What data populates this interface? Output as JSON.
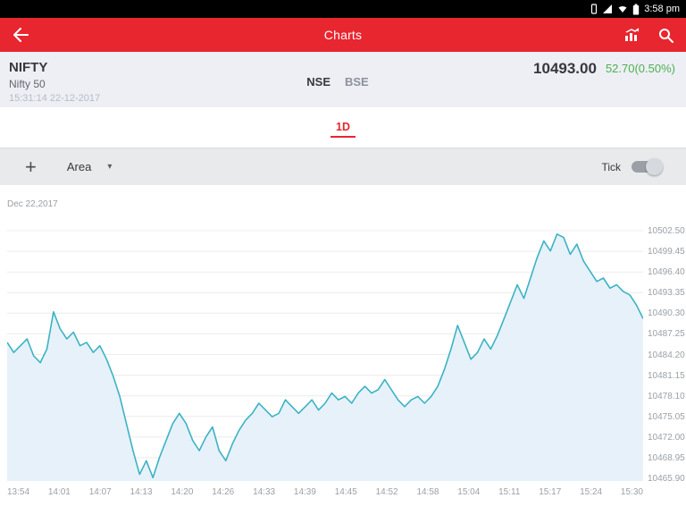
{
  "colors": {
    "accent": "#e8262f",
    "positive": "#4caf50"
  },
  "status_bar": {
    "time": "3:58 pm"
  },
  "app_bar": {
    "title": "Charts"
  },
  "quote": {
    "symbol": "NIFTY",
    "name": "Nifty 50",
    "timestamp": "15:31:14  22-12-2017",
    "exchange_primary": "NSE",
    "exchange_secondary": "BSE",
    "price": "10493.00",
    "change": "52.70(0.50%)"
  },
  "range_tabs": {
    "active_label": "1D"
  },
  "toolbar": {
    "plus_glyph": "+",
    "chart_type": "Area",
    "caret_glyph": "▾",
    "tick_label": "Tick",
    "tick_on": false
  },
  "chart": {
    "date_label": "Dec 22,2017"
  },
  "chart_data": {
    "type": "area",
    "title": "NIFTY Nifty 50 intraday 1D",
    "xlabel": "",
    "ylabel": "",
    "grid": true,
    "legend": false,
    "line_color": "#3bb3c3",
    "fill_color": "#e7f1fa",
    "grid_color": "#ececec",
    "ylim": [
      10465.9,
      10502.5
    ],
    "y_ticks": [
      "10502.50",
      "10499.45",
      "10496.40",
      "10493.35",
      "10490.30",
      "10487.25",
      "10484.20",
      "10481.15",
      "10478.10",
      "10475.05",
      "10472.00",
      "10468.95",
      "10465.90"
    ],
    "x_ticks": [
      "13:54",
      "14:01",
      "14:07",
      "14:13",
      "14:20",
      "14:26",
      "14:33",
      "14:39",
      "14:45",
      "14:52",
      "14:58",
      "15:04",
      "15:11",
      "15:17",
      "15:24",
      "15:30"
    ],
    "values": [
      10486.0,
      10484.5,
      10485.5,
      10486.5,
      10484.0,
      10483.0,
      10485.0,
      10490.5,
      10488.0,
      10486.5,
      10487.5,
      10485.5,
      10486.0,
      10484.5,
      10485.5,
      10483.5,
      10481.0,
      10478.0,
      10474.0,
      10470.0,
      10466.5,
      10468.5,
      10466.0,
      10469.0,
      10471.5,
      10474.0,
      10475.5,
      10474.0,
      10471.5,
      10470.0,
      10472.0,
      10473.5,
      10470.0,
      10468.5,
      10471.0,
      10473.0,
      10474.5,
      10475.5,
      10477.0,
      10476.0,
      10475.0,
      10475.5,
      10477.5,
      10476.5,
      10475.5,
      10476.5,
      10477.5,
      10476.0,
      10477.0,
      10478.5,
      10477.5,
      10478.0,
      10477.0,
      10478.5,
      10479.5,
      10478.5,
      10479.0,
      10480.5,
      10479.0,
      10477.5,
      10476.5,
      10477.5,
      10478.0,
      10477.0,
      10478.0,
      10479.5,
      10482.0,
      10485.0,
      10488.5,
      10486.0,
      10483.5,
      10484.5,
      10486.5,
      10485.0,
      10487.0,
      10489.5,
      10492.0,
      10494.5,
      10492.5,
      10495.5,
      10498.5,
      10501.0,
      10499.5,
      10502.0,
      10501.5,
      10499.0,
      10500.5,
      10498.0,
      10496.5,
      10495.0,
      10495.5,
      10494.0,
      10494.5,
      10493.5,
      10493.0,
      10491.5,
      10489.5
    ]
  }
}
